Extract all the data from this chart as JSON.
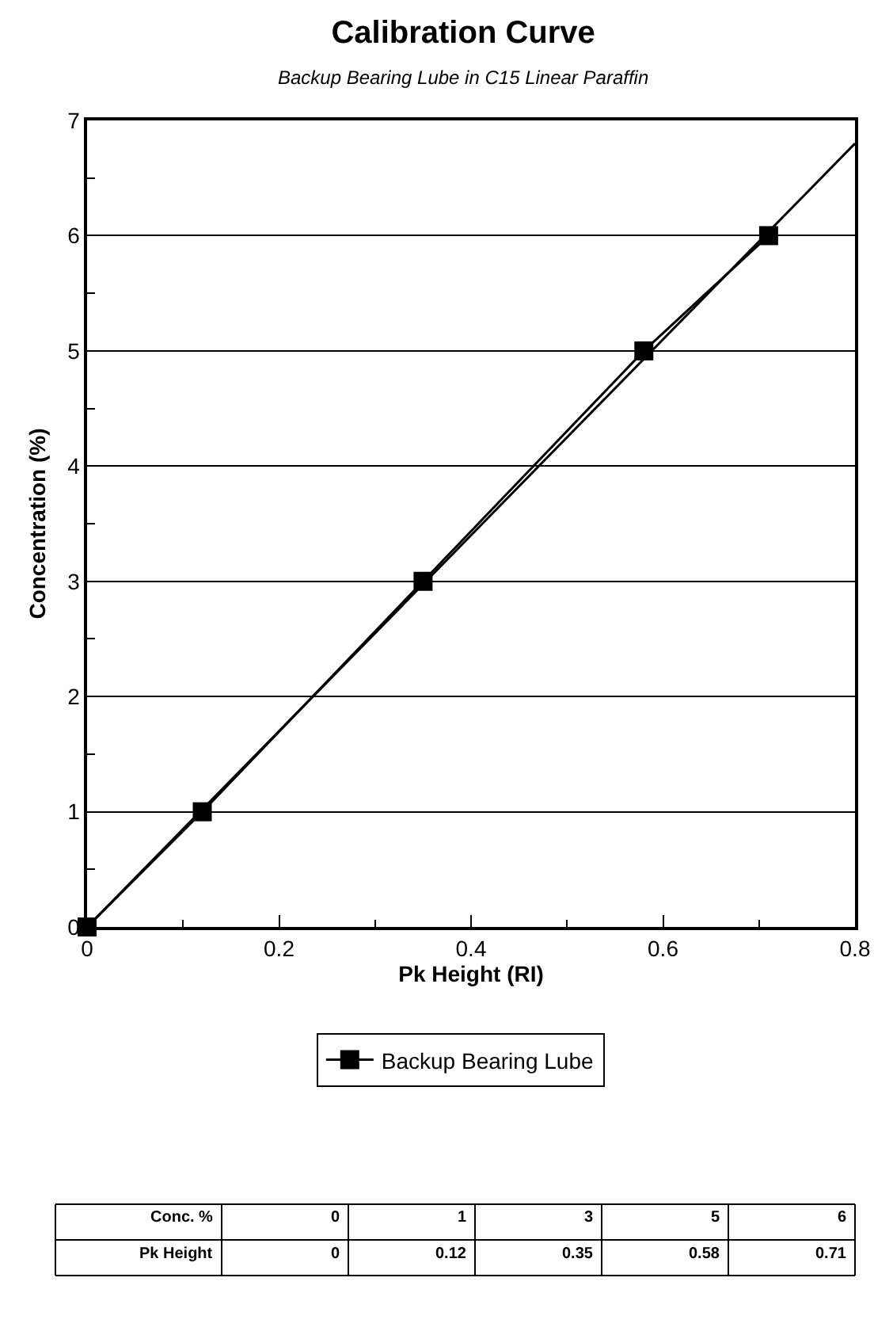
{
  "chart_data": {
    "type": "line",
    "title": "Calibration Curve",
    "subtitle": "Backup Bearing Lube in C15 Linear Paraffin",
    "xlabel": "Pk Height (RI)",
    "ylabel": "Concentration (%)",
    "x": [
      0,
      0.12,
      0.35,
      0.58,
      0.71
    ],
    "series": [
      {
        "name": "Backup Bearing Lube",
        "color": "#000000",
        "values": [
          0,
          1,
          3,
          5,
          6
        ],
        "marker": "square"
      },
      {
        "type": "line",
        "color": "#000000",
        "x": [
          0,
          0.8
        ],
        "values": [
          0,
          6.8
        ],
        "marker": "none"
      }
    ],
    "xlim": [
      0,
      0.8
    ],
    "xticks": [
      0,
      0.2,
      0.4,
      0.6,
      0.8
    ],
    "ylim": [
      0,
      7
    ],
    "yticks": [
      0,
      1,
      2,
      3,
      4,
      5,
      6,
      7
    ],
    "grid": "y",
    "legend": "bottom",
    "annotations": [
      "Conc. %",
      "0",
      "1",
      "3",
      "5",
      "6",
      "Pk Height",
      "0",
      "0.12",
      "0.35",
      "0.58",
      "0.71"
    ]
  }
}
